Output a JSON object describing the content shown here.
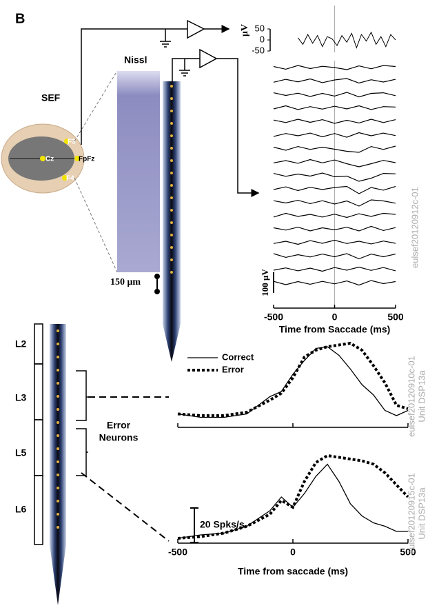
{
  "figure": {
    "panel_label": "B",
    "region": "SEF",
    "stain": "Nissl",
    "scale_bar": "150 μm",
    "electrodes": [
      "F3",
      "Cz",
      "FpFz",
      "F4"
    ],
    "layers": [
      "L2",
      "L3",
      "L5",
      "L6"
    ],
    "neuron_group": [
      "Error",
      "Neurons"
    ]
  },
  "chart_data": [
    {
      "type": "line",
      "y_label": "μV",
      "color": "#000000",
      "xlim": [
        -500,
        500
      ],
      "ylim": [
        -50,
        50
      ],
      "yticks": [
        -50,
        0,
        50
      ],
      "x": [
        -300,
        -260,
        -220,
        -180,
        -140,
        -100,
        -60,
        -20,
        20,
        60,
        100,
        140,
        180,
        220,
        260,
        300,
        340,
        380,
        420,
        460,
        500
      ],
      "values": [
        10,
        -20,
        25,
        -15,
        20,
        -30,
        15,
        5,
        -25,
        20,
        -10,
        30,
        -35,
        25,
        -5,
        35,
        -20,
        15,
        -30,
        25,
        0
      ]
    },
    {
      "type": "line",
      "recording": "eulsef20120912c-01",
      "x_label": "Time from Saccade (ms)",
      "color": "#000000",
      "xlim": [
        -500,
        500
      ],
      "xticks": [
        -500,
        0,
        500
      ],
      "scale_bar": {
        "value": 100,
        "label": "100 μV"
      },
      "x": [
        -500,
        -400,
        -300,
        -200,
        -100,
        0,
        100,
        200,
        300,
        400,
        500
      ],
      "series": [
        {
          "values": [
            5,
            -8,
            10,
            -5,
            6,
            0,
            -10,
            8,
            -6,
            10,
            5
          ]
        },
        {
          "values": [
            -6,
            8,
            -4,
            10,
            -8,
            5,
            12,
            -10,
            6,
            -5,
            8
          ]
        },
        {
          "values": [
            8,
            -5,
            6,
            -10,
            5,
            -8,
            10,
            -12,
            5,
            8,
            -6
          ]
        },
        {
          "values": [
            -5,
            10,
            -8,
            6,
            -6,
            8,
            -5,
            10,
            -8,
            6,
            4
          ]
        },
        {
          "values": [
            6,
            -6,
            10,
            -5,
            8,
            -10,
            5,
            -8,
            10,
            -6,
            8
          ]
        },
        {
          "values": [
            -8,
            6,
            -5,
            8,
            -10,
            6,
            -12,
            10,
            -5,
            8,
            -4
          ]
        },
        {
          "values": [
            5,
            -10,
            8,
            -6,
            5,
            -5,
            -15,
            -20,
            8,
            -6,
            10
          ]
        },
        {
          "values": [
            -6,
            5,
            -8,
            10,
            -6,
            8,
            -10,
            -25,
            -10,
            6,
            -5
          ]
        },
        {
          "values": [
            8,
            -6,
            5,
            -5,
            10,
            -8,
            -5,
            -30,
            -15,
            8,
            6
          ]
        },
        {
          "values": [
            -5,
            8,
            -10,
            6,
            -5,
            5,
            10,
            -25,
            5,
            -8,
            10
          ]
        },
        {
          "values": [
            6,
            -5,
            8,
            -8,
            6,
            -10,
            5,
            -20,
            10,
            5,
            -6
          ]
        },
        {
          "values": [
            -8,
            10,
            -5,
            5,
            -8,
            6,
            -10,
            8,
            -5,
            10,
            5
          ]
        },
        {
          "values": [
            5,
            -6,
            8,
            -10,
            5,
            -5,
            8,
            -10,
            12,
            -8,
            6
          ]
        },
        {
          "values": [
            -6,
            5,
            -10,
            8,
            -5,
            10,
            -6,
            5,
            -8,
            6,
            -5
          ]
        },
        {
          "values": [
            10,
            -8,
            5,
            -6,
            8,
            -5,
            10,
            -15,
            8,
            -5,
            8
          ]
        },
        {
          "values": [
            -5,
            6,
            -8,
            5,
            -10,
            8,
            -5,
            10,
            -6,
            8,
            -8
          ]
        },
        {
          "values": [
            6,
            -10,
            5,
            -8,
            6,
            -6,
            8,
            -12,
            10,
            -5,
            5
          ]
        }
      ]
    },
    {
      "type": "line",
      "recording": "eulsef20120910c-01",
      "unit": "Unit DSP13a",
      "xlim": [
        -500,
        500
      ],
      "ylim": [
        0,
        50
      ],
      "x": [
        -500,
        -400,
        -300,
        -200,
        -100,
        -50,
        0,
        50,
        100,
        150,
        200,
        250,
        300,
        350,
        400,
        450,
        500
      ],
      "series": [
        {
          "name": "Correct",
          "color": "#000000",
          "style": "solid",
          "values": [
            7,
            5,
            5,
            7,
            17,
            20,
            30,
            38,
            45,
            46,
            41,
            33,
            24,
            18,
            9,
            6,
            9
          ]
        },
        {
          "name": "Error",
          "color": "#000000",
          "style": "dotted",
          "values": [
            7,
            6,
            6,
            8,
            15,
            19,
            28,
            40,
            44,
            46,
            47,
            48,
            44,
            35,
            25,
            12,
            10
          ]
        }
      ]
    },
    {
      "type": "line",
      "recording": "eulsef20120915c-01",
      "unit": "Unit DSP13a",
      "x_label": "Time from saccade (ms)",
      "xlim": [
        -500,
        500
      ],
      "ylim": [
        0,
        50
      ],
      "xticks": [
        -500,
        0,
        500
      ],
      "scale_bar": {
        "value": 20,
        "label": "20 Spks/s"
      },
      "x": [
        -500,
        -400,
        -300,
        -200,
        -100,
        -50,
        0,
        50,
        100,
        150,
        200,
        250,
        300,
        350,
        400,
        450,
        500
      ],
      "series": [
        {
          "color": "#000000",
          "style": "solid",
          "values": [
            2,
            4,
            5,
            9,
            18,
            26,
            20,
            28,
            38,
            45,
            35,
            22,
            15,
            11,
            9,
            6,
            6
          ]
        },
        {
          "color": "#000000",
          "style": "dotted",
          "values": [
            2,
            3,
            5,
            9,
            16,
            24,
            20,
            35,
            46,
            50,
            49,
            48,
            47,
            45,
            40,
            33,
            26
          ]
        }
      ]
    }
  ]
}
